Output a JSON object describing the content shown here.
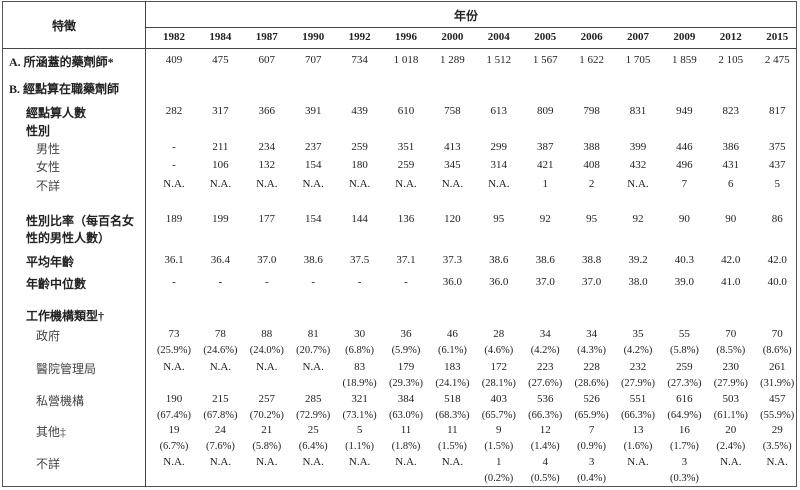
{
  "header": {
    "characteristic": "特徵",
    "year": "年份"
  },
  "years": [
    "1982",
    "1984",
    "1987",
    "1990",
    "1992",
    "1996",
    "2000",
    "2004",
    "2005",
    "2006",
    "2007",
    "2009",
    "2012",
    "2015"
  ],
  "rows": [
    {
      "label": "A. 所涵蓋的藥劑師*",
      "style": "b",
      "values": [
        "409",
        "475",
        "607",
        "707",
        "734",
        "1 018",
        "1 289",
        "1 512",
        "1 567",
        "1 622",
        "1 705",
        "1 859",
        "2 105",
        "2 475"
      ]
    },
    {
      "label": "B. 經點算在職藥劑師",
      "style": "b",
      "values": []
    },
    {
      "label": "經點算人數",
      "style": "b2",
      "values": [
        "282",
        "317",
        "366",
        "391",
        "439",
        "610",
        "758",
        "613",
        "809",
        "798",
        "831",
        "949",
        "823",
        "817"
      ]
    },
    {
      "label": "性別",
      "style": "b2",
      "values": []
    },
    {
      "label": "男性",
      "style": "sub",
      "values": [
        "-",
        "211",
        "234",
        "237",
        "259",
        "351",
        "413",
        "299",
        "387",
        "388",
        "399",
        "446",
        "386",
        "375"
      ]
    },
    {
      "label": "女性",
      "style": "sub",
      "values": [
        "-",
        "106",
        "132",
        "154",
        "180",
        "259",
        "345",
        "314",
        "421",
        "408",
        "432",
        "496",
        "431",
        "437"
      ]
    },
    {
      "label": "不詳",
      "style": "sub",
      "values": [
        "N.A.",
        "N.A.",
        "N.A.",
        "N.A.",
        "N.A.",
        "N.A.",
        "N.A.",
        "N.A.",
        "1",
        "2",
        "N.A.",
        "7",
        "6",
        "5"
      ]
    },
    {
      "label": "性別比率（每百名女",
      "label2": "性的男性人數）",
      "style": "b2",
      "values": [
        "189",
        "199",
        "177",
        "154",
        "144",
        "136",
        "120",
        "95",
        "92",
        "95",
        "92",
        "90",
        "90",
        "86"
      ]
    },
    {
      "label": "平均年齡",
      "style": "b2",
      "values": [
        "36.1",
        "36.4",
        "37.0",
        "38.6",
        "37.5",
        "37.1",
        "37.3",
        "38.6",
        "38.6",
        "38.8",
        "39.2",
        "40.3",
        "42.0",
        "42.0"
      ]
    },
    {
      "label": "年齡中位數",
      "style": "b2",
      "values": [
        "-",
        "-",
        "-",
        "-",
        "-",
        "-",
        "36.0",
        "36.0",
        "37.0",
        "37.0",
        "38.0",
        "39.0",
        "41.0",
        "40.0"
      ]
    },
    {
      "label": "工作機構類型†",
      "style": "b2",
      "values": []
    },
    {
      "label": "政府",
      "style": "sub",
      "values": [
        "73",
        "78",
        "88",
        "81",
        "30",
        "36",
        "46",
        "28",
        "34",
        "34",
        "35",
        "55",
        "70",
        "70"
      ],
      "pct": [
        "(25.9%)",
        "(24.6%)",
        "(24.0%)",
        "(20.7%)",
        "(6.8%)",
        "(5.9%)",
        "(6.1%)",
        "(4.6%)",
        "(4.2%)",
        "(4.3%)",
        "(4.2%)",
        "(5.8%)",
        "(8.5%)",
        "(8.6%)"
      ]
    },
    {
      "label": "醫院管理局",
      "style": "sub",
      "values": [
        "N.A.",
        "N.A.",
        "N.A.",
        "N.A.",
        "83",
        "179",
        "183",
        "172",
        "223",
        "228",
        "232",
        "259",
        "230",
        "261"
      ],
      "pct": [
        "",
        "",
        "",
        "",
        "(18.9%)",
        "(29.3%)",
        "(24.1%)",
        "(28.1%)",
        "(27.6%)",
        "(28.6%)",
        "(27.9%)",
        "(27.3%)",
        "(27.9%)",
        "(31.9%)"
      ]
    },
    {
      "label": "私營機構",
      "style": "sub",
      "values": [
        "190",
        "215",
        "257",
        "285",
        "321",
        "384",
        "518",
        "403",
        "536",
        "526",
        "551",
        "616",
        "503",
        "457"
      ],
      "pct": [
        "(67.4%)",
        "(67.8%)",
        "(70.2%)",
        "(72.9%)",
        "(73.1%)",
        "(63.0%)",
        "(68.3%)",
        "(65.7%)",
        "(66.3%)",
        "(65.9%)",
        "(66.3%)",
        "(64.9%)",
        "(61.1%)",
        "(55.9%)"
      ]
    },
    {
      "label": "其他‡",
      "style": "sub",
      "values": [
        "19",
        "24",
        "21",
        "25",
        "5",
        "11",
        "11",
        "9",
        "12",
        "7",
        "13",
        "16",
        "20",
        "29"
      ],
      "pct": [
        "(6.7%)",
        "(7.6%)",
        "(5.8%)",
        "(6.4%)",
        "(1.1%)",
        "(1.8%)",
        "(1.5%)",
        "(1.5%)",
        "(1.4%)",
        "(0.9%)",
        "(1.6%)",
        "(1.7%)",
        "(2.4%)",
        "(3.5%)"
      ]
    },
    {
      "label": "不詳",
      "style": "sub",
      "values": [
        "N.A.",
        "N.A.",
        "N.A.",
        "N.A.",
        "N.A.",
        "N.A.",
        "N.A.",
        "1",
        "4",
        "3",
        "N.A.",
        "3",
        "N.A.",
        "N.A."
      ],
      "pct": [
        "",
        "",
        "",
        "",
        "",
        "",
        "",
        "(0.2%)",
        "(0.5%)",
        "(0.4%)",
        "",
        "(0.3%)",
        "",
        ""
      ]
    }
  ]
}
